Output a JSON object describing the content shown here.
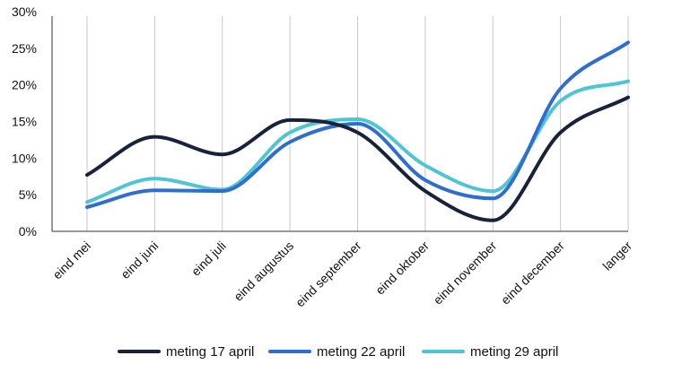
{
  "chart_data": {
    "type": "line",
    "categories": [
      "eind mei",
      "eind juni",
      "eind juli",
      "eind augustus",
      "eind september",
      "eind oktober",
      "eind november",
      "eind december",
      "langer"
    ],
    "ylim": [
      0,
      30
    ],
    "yticks": [
      0,
      5,
      10,
      15,
      20,
      25,
      30
    ],
    "ytick_labels": [
      "0%",
      "5%",
      "10%",
      "15%",
      "20%",
      "25%",
      "30%"
    ],
    "grid": "vertical",
    "legend": "bottom",
    "series": [
      {
        "name": "meting 17 april",
        "color": "#17223b",
        "values": [
          7.7,
          12.9,
          10.5,
          15.2,
          13.5,
          5.5,
          1.5,
          13.5,
          18.3
        ]
      },
      {
        "name": "meting 22 april",
        "color": "#2f6ecf",
        "values": [
          3.3,
          5.6,
          5.5,
          12.2,
          14.7,
          7.0,
          4.5,
          19.5,
          25.8
        ]
      },
      {
        "name": "meting 29 april",
        "color": "#4fc4d4",
        "values": [
          4.0,
          7.2,
          5.7,
          13.5,
          15.3,
          9.0,
          5.5,
          17.8,
          20.5
        ]
      }
    ]
  }
}
